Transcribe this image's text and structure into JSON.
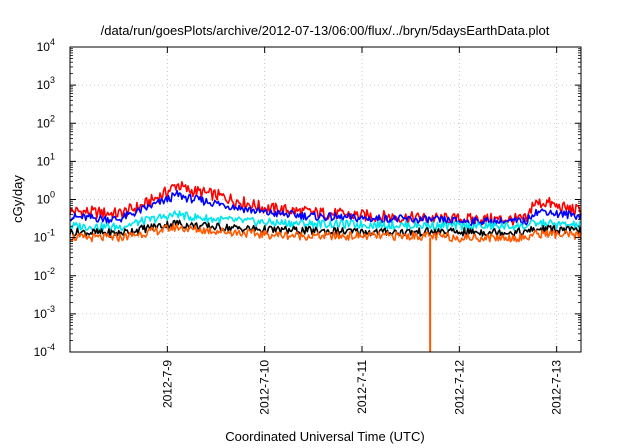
{
  "chart_data": {
    "type": "line",
    "title": "/data/run/goesPlots/archive/2012-07-13/06:00/flux/../bryn/5daysEarthData.plot",
    "xlabel": "Coordinated Universal Time (UTC)",
    "ylabel": "cGy/day",
    "yscale": "log",
    "ylim": [
      0.0001,
      10000
    ],
    "xlim": [
      8.0,
      13.25
    ],
    "grid": true,
    "y_ticks": [
      {
        "base": "10",
        "exp": "-4",
        "value": 0.0001
      },
      {
        "base": "10",
        "exp": "-3",
        "value": 0.001
      },
      {
        "base": "10",
        "exp": "-2",
        "value": 0.01
      },
      {
        "base": "10",
        "exp": "-1",
        "value": 0.1
      },
      {
        "base": "10",
        "exp": "0",
        "value": 1
      },
      {
        "base": "10",
        "exp": "1",
        "value": 10
      },
      {
        "base": "10",
        "exp": "2",
        "value": 100
      },
      {
        "base": "10",
        "exp": "3",
        "value": 1000
      },
      {
        "base": "10",
        "exp": "4",
        "value": 10000
      }
    ],
    "x_ticks": [
      {
        "label": "2012-7-9",
        "value": 9
      },
      {
        "label": "2012-7-10",
        "value": 10
      },
      {
        "label": "2012-7-11",
        "value": 11
      },
      {
        "label": "2012-7-12",
        "value": 12
      },
      {
        "label": "2012-7-13",
        "value": 13
      }
    ],
    "x": [
      8.0,
      8.5,
      8.75,
      9.0,
      9.1,
      9.2,
      9.5,
      10.0,
      10.5,
      11.0,
      11.5,
      11.7,
      12.0,
      12.5,
      12.7,
      12.75,
      12.9,
      13.0,
      13.25
    ],
    "series": [
      {
        "color": "#ff0000",
        "values": [
          0.5,
          0.42,
          0.7,
          1.6,
          2.5,
          1.8,
          1.3,
          0.6,
          0.45,
          0.38,
          0.33,
          0.32,
          0.3,
          0.3,
          0.3,
          0.75,
          0.85,
          0.65,
          0.5
        ]
      },
      {
        "color": "#0000ff",
        "values": [
          0.35,
          0.3,
          0.55,
          1.0,
          1.35,
          1.1,
          0.8,
          0.45,
          0.36,
          0.32,
          0.3,
          0.29,
          0.27,
          0.26,
          0.27,
          0.45,
          0.5,
          0.42,
          0.38
        ]
      },
      {
        "color": "#00e5ee",
        "values": [
          0.2,
          0.19,
          0.27,
          0.36,
          0.42,
          0.36,
          0.3,
          0.25,
          0.23,
          0.22,
          0.21,
          0.21,
          0.2,
          0.2,
          0.2,
          0.23,
          0.24,
          0.22,
          0.21
        ]
      },
      {
        "color": "#000000",
        "values": [
          0.14,
          0.13,
          0.17,
          0.22,
          0.24,
          0.21,
          0.19,
          0.16,
          0.15,
          0.14,
          0.14,
          0.14,
          0.14,
          0.14,
          0.14,
          0.16,
          0.17,
          0.16,
          0.15
        ]
      },
      {
        "color": "#ff5a00",
        "values": [
          0.1,
          0.1,
          0.13,
          0.17,
          0.19,
          0.17,
          0.15,
          0.12,
          0.11,
          0.11,
          0.11,
          0.11,
          0.1,
          0.1,
          0.1,
          0.12,
          0.13,
          0.12,
          0.11
        ]
      }
    ],
    "annotations": [
      {
        "type": "dropout",
        "x": 11.7,
        "y_min": 0.0001,
        "y_max": 0.1,
        "color": "#ff5a00"
      }
    ]
  }
}
